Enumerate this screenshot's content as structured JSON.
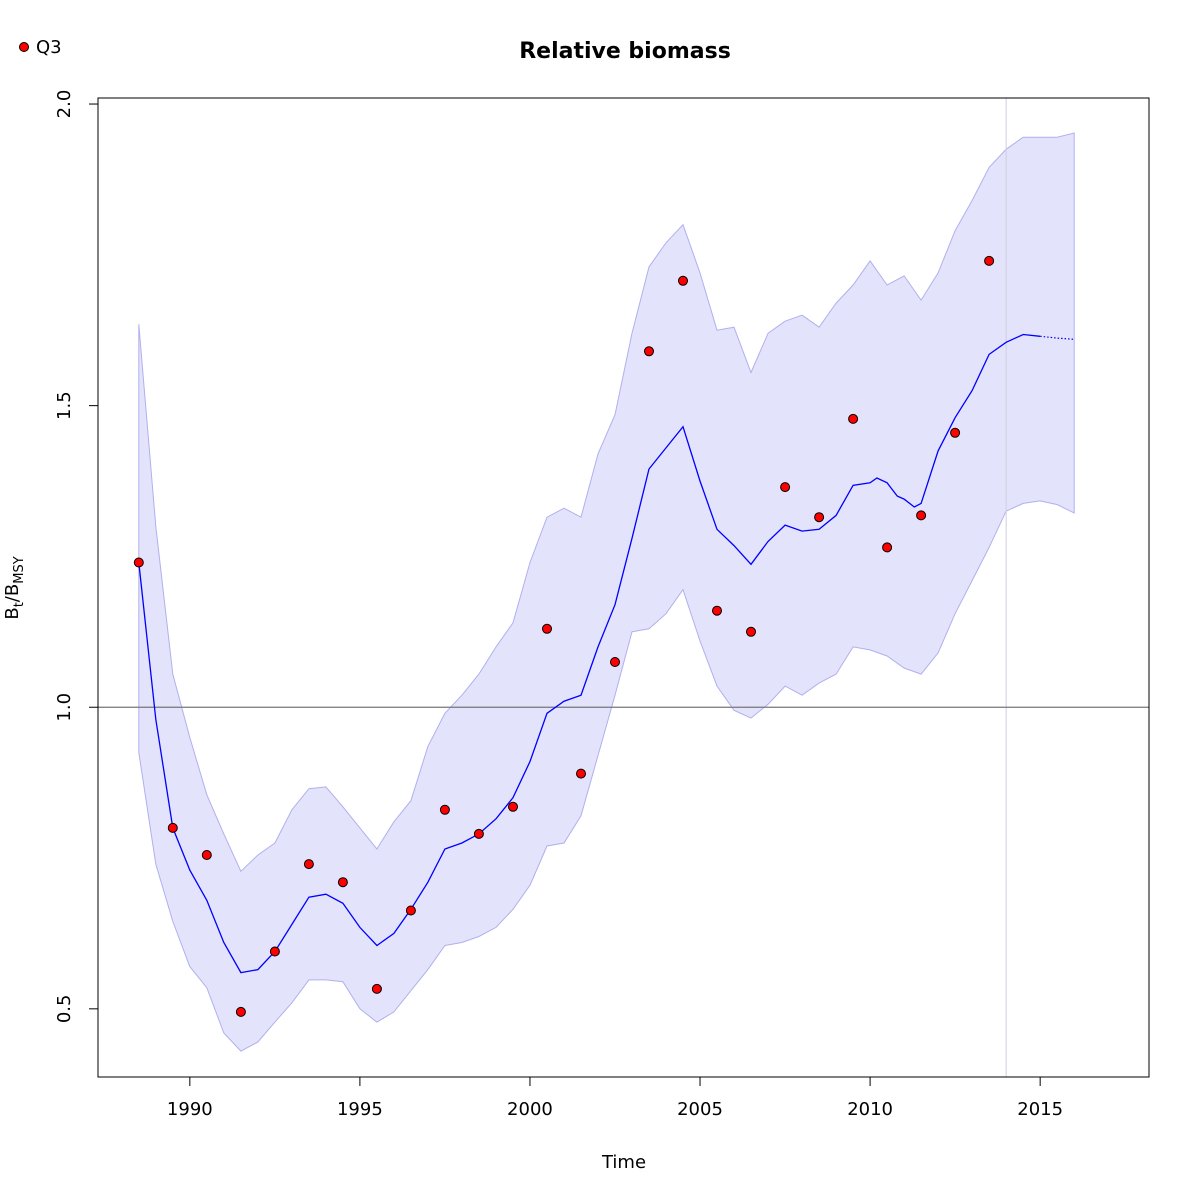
{
  "chart_data": {
    "type": "line",
    "title": "Relative biomass",
    "xlabel": "Time",
    "ylabel": "B_t/B_MSY",
    "ylabel_main_1": "B",
    "ylabel_sub_1": "t",
    "ylabel_slash": "/",
    "ylabel_main_2": "B",
    "ylabel_sub_2": "MSY",
    "xlim": [
      1987.3,
      2018.2
    ],
    "ylim": [
      0.387,
      2.01
    ],
    "xticks": [
      1990,
      1995,
      2000,
      2005,
      2010,
      2015
    ],
    "xtick_labels": [
      "1990",
      "1995",
      "2000",
      "2005",
      "2010",
      "2015"
    ],
    "yticks": [
      0.5,
      1.0,
      1.5,
      2.0
    ],
    "ytick_labels": [
      "0.5",
      "1.0",
      "1.5",
      "2.0"
    ],
    "reference_line_y": 1.0,
    "reference_vline_x": 2014.0,
    "legend": {
      "position": "top-left",
      "entries": [
        {
          "name": "Q3",
          "color": "#ff0000"
        }
      ]
    },
    "colors": {
      "median": "#0000ff",
      "band": "#e3e3fc",
      "band_edge": "#b0b0ee",
      "points": "#ff0000",
      "refline": "#777777",
      "vline": "#d0d0e0"
    },
    "series": [
      {
        "name": "Q3",
        "kind": "points",
        "x": [
          1988.5,
          1989.5,
          1990.5,
          1991.5,
          1992.5,
          1993.5,
          1994.5,
          1995.5,
          1996.5,
          1997.5,
          1998.5,
          1999.5,
          2000.5,
          2001.5,
          2002.5,
          2003.5,
          2004.5,
          2005.5,
          2006.5,
          2007.5,
          2008.5,
          2009.5,
          2010.5,
          2011.5,
          2012.5,
          2013.5
        ],
        "y": [
          1.24,
          0.8,
          0.755,
          0.495,
          0.595,
          0.74,
          0.71,
          0.533,
          0.663,
          0.83,
          0.79,
          0.835,
          1.13,
          0.89,
          1.075,
          1.59,
          1.707,
          1.16,
          1.125,
          1.365,
          1.315,
          1.478,
          1.265,
          1.318,
          1.455,
          1.74
        ]
      },
      {
        "name": "median",
        "kind": "line",
        "x": [
          1988.5,
          1989.0,
          1989.5,
          1990.0,
          1990.5,
          1991.0,
          1991.5,
          1992.0,
          1992.5,
          1993.0,
          1993.5,
          1994.0,
          1994.5,
          1995.0,
          1995.5,
          1996.0,
          1996.5,
          1997.0,
          1997.5,
          1998.0,
          1998.5,
          1999.0,
          1999.5,
          2000.0,
          2000.5,
          2001.0,
          2001.5,
          2002.0,
          2002.5,
          2003.0,
          2003.5,
          2004.0,
          2004.5,
          2005.0,
          2005.5,
          2006.0,
          2006.5,
          2007.0,
          2007.5,
          2008.0,
          2008.5,
          2009.0,
          2009.5,
          2010.0,
          2010.2,
          2010.5,
          2010.8,
          2011.0,
          2011.3,
          2011.5,
          2012.0,
          2012.5,
          2013.0,
          2013.5,
          2014.0,
          2014.5,
          2015.0
        ],
        "y": [
          1.24,
          0.98,
          0.8,
          0.73,
          0.68,
          0.61,
          0.56,
          0.565,
          0.595,
          0.64,
          0.685,
          0.69,
          0.675,
          0.635,
          0.605,
          0.625,
          0.665,
          0.71,
          0.765,
          0.775,
          0.79,
          0.815,
          0.85,
          0.91,
          0.99,
          1.01,
          1.02,
          1.1,
          1.17,
          1.28,
          1.395,
          1.43,
          1.465,
          1.375,
          1.295,
          1.268,
          1.237,
          1.275,
          1.302,
          1.292,
          1.295,
          1.318,
          1.368,
          1.372,
          1.38,
          1.372,
          1.35,
          1.345,
          1.332,
          1.338,
          1.425,
          1.48,
          1.525,
          1.585,
          1.605,
          1.618,
          1.615
        ]
      },
      {
        "name": "median_projection",
        "kind": "dotted-line",
        "x": [
          2015.0,
          2015.5,
          2016.0
        ],
        "y": [
          1.615,
          1.612,
          1.61
        ]
      },
      {
        "name": "band_upper",
        "kind": "band-upper",
        "x": [
          1988.5,
          1989.0,
          1989.5,
          1990.0,
          1990.5,
          1991.0,
          1991.5,
          1992.0,
          1992.5,
          1993.0,
          1993.5,
          1994.0,
          1994.5,
          1995.0,
          1995.5,
          1996.0,
          1996.5,
          1997.0,
          1997.5,
          1998.0,
          1998.5,
          1999.0,
          1999.5,
          2000.0,
          2000.5,
          2001.0,
          2001.5,
          2002.0,
          2002.5,
          2003.0,
          2003.5,
          2004.0,
          2004.5,
          2005.0,
          2005.5,
          2006.0,
          2006.5,
          2007.0,
          2007.5,
          2008.0,
          2008.5,
          2009.0,
          2009.5,
          2010.0,
          2010.5,
          2011.0,
          2011.5,
          2012.0,
          2012.5,
          2013.0,
          2013.5,
          2014.0,
          2014.5,
          2015.0,
          2015.5,
          2016.0
        ],
        "y": [
          1.635,
          1.3,
          1.055,
          0.95,
          0.855,
          0.79,
          0.728,
          0.755,
          0.775,
          0.83,
          0.865,
          0.868,
          0.835,
          0.8,
          0.765,
          0.81,
          0.845,
          0.935,
          0.99,
          1.02,
          1.055,
          1.1,
          1.14,
          1.24,
          1.315,
          1.33,
          1.315,
          1.42,
          1.485,
          1.62,
          1.73,
          1.77,
          1.8,
          1.72,
          1.625,
          1.63,
          1.555,
          1.62,
          1.64,
          1.65,
          1.63,
          1.67,
          1.7,
          1.74,
          1.7,
          1.715,
          1.675,
          1.72,
          1.79,
          1.84,
          1.895,
          1.925,
          1.945,
          1.945,
          1.945,
          1.952
        ]
      },
      {
        "name": "band_lower",
        "kind": "band-lower",
        "x": [
          1988.5,
          1989.0,
          1989.5,
          1990.0,
          1990.5,
          1991.0,
          1991.5,
          1992.0,
          1992.5,
          1993.0,
          1993.5,
          1994.0,
          1994.5,
          1995.0,
          1995.5,
          1996.0,
          1996.5,
          1997.0,
          1997.5,
          1998.0,
          1998.5,
          1999.0,
          1999.5,
          2000.0,
          2000.5,
          2001.0,
          2001.5,
          2002.0,
          2002.5,
          2003.0,
          2003.5,
          2004.0,
          2004.5,
          2005.0,
          2005.5,
          2006.0,
          2006.5,
          2007.0,
          2007.5,
          2008.0,
          2008.5,
          2009.0,
          2009.5,
          2010.0,
          2010.5,
          2011.0,
          2011.5,
          2012.0,
          2012.5,
          2013.0,
          2013.5,
          2014.0,
          2014.5,
          2015.0,
          2015.5,
          2016.0
        ],
        "y": [
          0.925,
          0.74,
          0.645,
          0.57,
          0.535,
          0.46,
          0.43,
          0.445,
          0.478,
          0.51,
          0.548,
          0.548,
          0.545,
          0.5,
          0.478,
          0.495,
          0.53,
          0.565,
          0.605,
          0.61,
          0.62,
          0.635,
          0.665,
          0.705,
          0.77,
          0.775,
          0.82,
          0.92,
          1.02,
          1.125,
          1.13,
          1.155,
          1.195,
          1.11,
          1.035,
          0.995,
          0.982,
          1.005,
          1.035,
          1.02,
          1.04,
          1.055,
          1.1,
          1.095,
          1.085,
          1.065,
          1.055,
          1.09,
          1.155,
          1.21,
          1.265,
          1.325,
          1.338,
          1.342,
          1.336,
          1.322
        ]
      }
    ]
  }
}
